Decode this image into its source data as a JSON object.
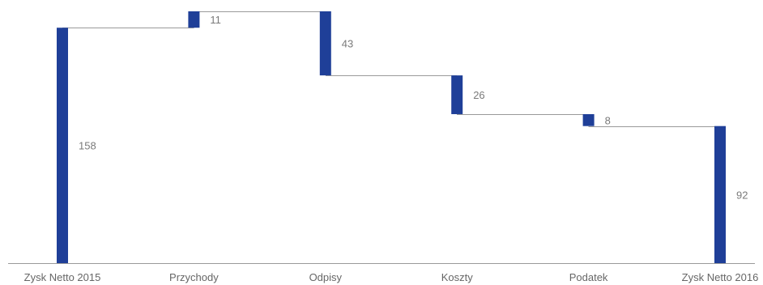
{
  "chart_data": {
    "type": "bar",
    "subtype": "waterfall",
    "title": "",
    "xlabel": "",
    "ylabel": "",
    "categories": [
      "Zysk Netto 2015",
      "Przychody",
      "Odpisy",
      "Koszty",
      "Podatek",
      "Zysk Netto 2016"
    ],
    "values": [
      158,
      11,
      -43,
      -26,
      -8,
      92
    ],
    "value_labels": [
      "158",
      "11",
      "43",
      "26",
      "8",
      "92"
    ],
    "kinds": [
      "total",
      "delta",
      "delta",
      "delta",
      "delta",
      "total"
    ],
    "ylim": [
      0,
      169
    ],
    "grid": false,
    "legend": "none",
    "colors": {
      "bar": "#1f3f98",
      "connector": "#9a9a9a",
      "axis": "#9a9a9a",
      "label": "#7a7a7a",
      "tick": "#666666"
    }
  }
}
